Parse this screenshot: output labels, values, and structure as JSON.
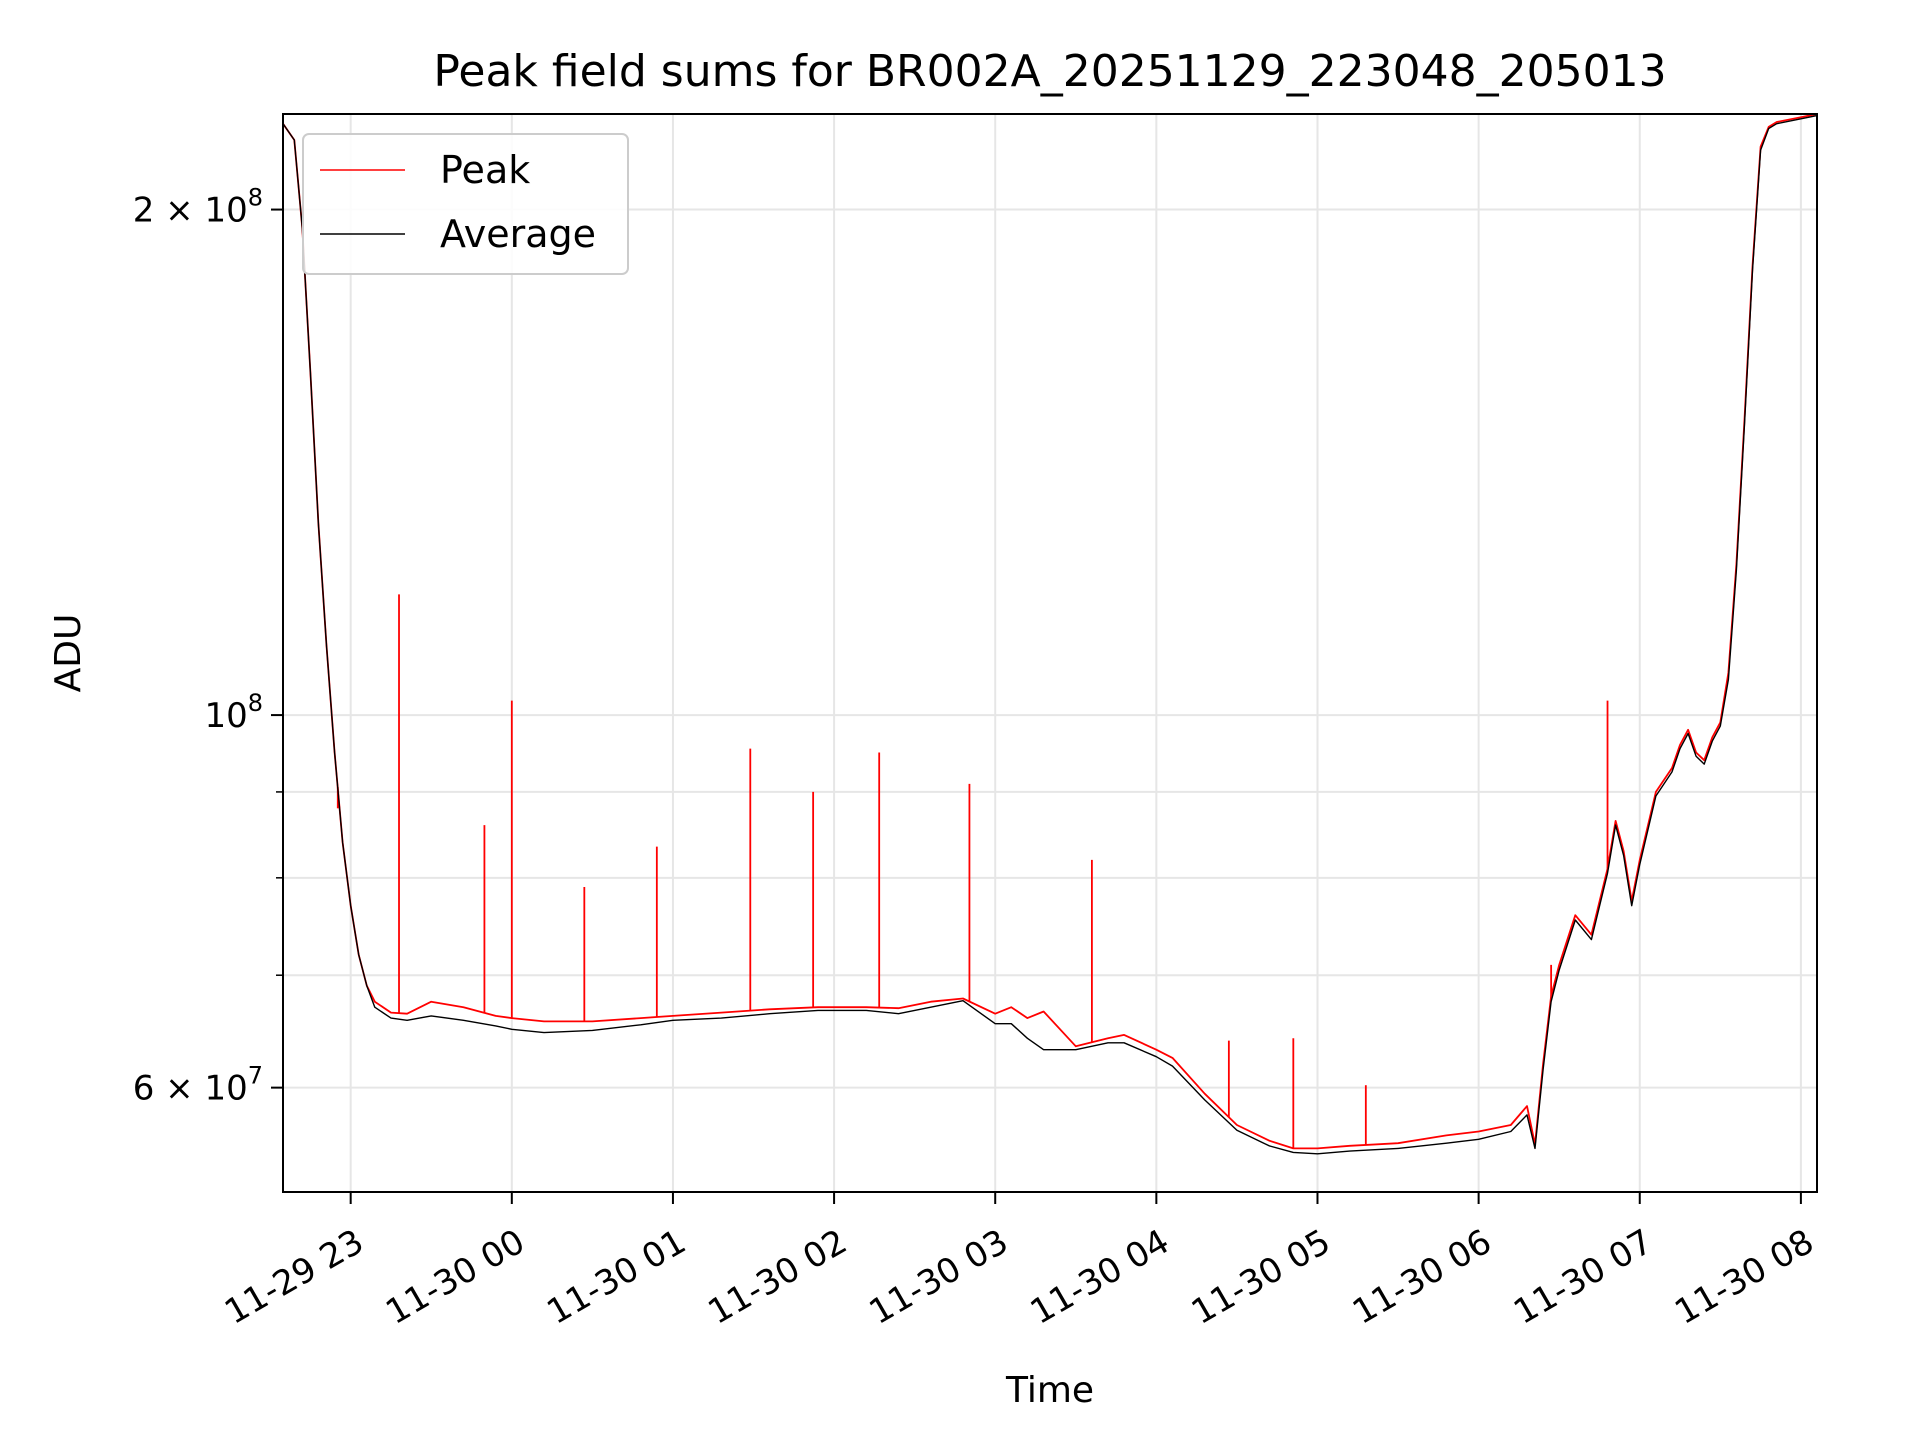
{
  "chart_data": {
    "type": "line",
    "title": "Peak field sums for BR002A_20251129_223048_205013",
    "xlabel": "Time",
    "ylabel": "ADU",
    "yscale": "log",
    "ylim": [
      52000000,
      228000000
    ],
    "xlim": [
      -0.42,
      9.1
    ],
    "grid": true,
    "legend_position": "top-left",
    "x_unit": "hours since 2025-11-29 23:00",
    "x_ticks": [
      {
        "value": 0,
        "label": "11-29 23"
      },
      {
        "value": 1,
        "label": "11-30 00"
      },
      {
        "value": 2,
        "label": "11-30 01"
      },
      {
        "value": 3,
        "label": "11-30 02"
      },
      {
        "value": 4,
        "label": "11-30 03"
      },
      {
        "value": 5,
        "label": "11-30 04"
      },
      {
        "value": 6,
        "label": "11-30 05"
      },
      {
        "value": 7,
        "label": "11-30 06"
      },
      {
        "value": 8,
        "label": "11-30 07"
      },
      {
        "value": 9,
        "label": "11-30 08"
      }
    ],
    "y_ticks_major": [
      {
        "value": 60000000,
        "mantissa": "6",
        "exponent": "7"
      },
      {
        "value": 100000000,
        "mantissa": "",
        "exponent": "8"
      },
      {
        "value": 200000000,
        "mantissa": "2",
        "exponent": "8"
      }
    ],
    "y_ticks_minor": [
      70000000,
      80000000,
      90000000
    ],
    "tick_base": "10",
    "tick_times": "×",
    "series": [
      {
        "name": "Peak",
        "color": "#ff0000",
        "x": [
          -0.42,
          -0.35,
          -0.3,
          -0.25,
          -0.2,
          -0.15,
          -0.1,
          -0.05,
          0.0,
          0.05,
          0.1,
          0.15,
          0.25,
          0.35,
          0.5,
          0.7,
          0.9,
          1.0,
          1.2,
          1.5,
          1.8,
          2.0,
          2.3,
          2.6,
          2.9,
          3.2,
          3.4,
          3.6,
          3.8,
          4.0,
          4.1,
          4.2,
          4.3,
          4.5,
          4.7,
          4.8,
          5.0,
          5.1,
          5.3,
          5.5,
          5.7,
          5.85,
          6.0,
          6.2,
          6.5,
          6.8,
          7.0,
          7.2,
          7.3,
          7.35,
          7.4,
          7.45,
          7.5,
          7.6,
          7.7,
          7.8,
          7.85,
          7.9,
          7.95,
          8.0,
          8.1,
          8.2,
          8.25,
          8.3,
          8.35,
          8.4,
          8.45,
          8.5,
          8.55,
          8.6,
          8.65,
          8.7,
          8.75,
          8.8,
          8.85,
          9.0,
          9.1
        ],
        "y": [
          225000000,
          220000000,
          195000000,
          160000000,
          130000000,
          110000000,
          95000000,
          84000000,
          77000000,
          72000000,
          69000000,
          67500000,
          66500000,
          66400000,
          67500000,
          67000000,
          66200000,
          66000000,
          65700000,
          65700000,
          66000000,
          66200000,
          66500000,
          66800000,
          67000000,
          67000000,
          66900000,
          67500000,
          67800000,
          66400000,
          67000000,
          66000000,
          66600000,
          63500000,
          64200000,
          64500000,
          63200000,
          62500000,
          59500000,
          57000000,
          55800000,
          55200000,
          55200000,
          55400000,
          55600000,
          56200000,
          56500000,
          57000000,
          58500000,
          55500000,
          62000000,
          68000000,
          71000000,
          76000000,
          74000000,
          81000000,
          86500000,
          83000000,
          77500000,
          82000000,
          90000000,
          93000000,
          96000000,
          98000000,
          95000000,
          94000000,
          97000000,
          99000000,
          106000000,
          123000000,
          150000000,
          185000000,
          218000000,
          224000000,
          225500000,
          227000000,
          228000000
        ],
        "spikes": [
          {
            "x": -0.08,
            "y": 88000000
          },
          {
            "x": 0.3,
            "y": 118000000
          },
          {
            "x": 0.83,
            "y": 86000000
          },
          {
            "x": 1.0,
            "y": 102000000
          },
          {
            "x": 1.45,
            "y": 79000000
          },
          {
            "x": 1.9,
            "y": 83500000
          },
          {
            "x": 2.48,
            "y": 95500000
          },
          {
            "x": 2.87,
            "y": 90000000
          },
          {
            "x": 3.28,
            "y": 95000000
          },
          {
            "x": 3.84,
            "y": 91000000
          },
          {
            "x": 4.6,
            "y": 82000000
          },
          {
            "x": 5.45,
            "y": 64000000
          },
          {
            "x": 5.85,
            "y": 64200000
          },
          {
            "x": 6.3,
            "y": 60200000
          },
          {
            "x": 7.45,
            "y": 71000000
          },
          {
            "x": 7.8,
            "y": 102000000
          }
        ]
      },
      {
        "name": "Average",
        "color": "#000000",
        "x": [
          -0.42,
          -0.35,
          -0.3,
          -0.25,
          -0.2,
          -0.15,
          -0.1,
          -0.05,
          0.0,
          0.05,
          0.1,
          0.15,
          0.25,
          0.35,
          0.5,
          0.7,
          0.9,
          1.0,
          1.2,
          1.5,
          1.8,
          2.0,
          2.3,
          2.6,
          2.9,
          3.2,
          3.4,
          3.6,
          3.8,
          4.0,
          4.1,
          4.2,
          4.3,
          4.5,
          4.7,
          4.8,
          5.0,
          5.1,
          5.3,
          5.5,
          5.7,
          5.85,
          6.0,
          6.2,
          6.5,
          6.8,
          7.0,
          7.2,
          7.3,
          7.35,
          7.4,
          7.45,
          7.5,
          7.6,
          7.7,
          7.8,
          7.85,
          7.9,
          7.95,
          8.0,
          8.1,
          8.2,
          8.25,
          8.3,
          8.35,
          8.4,
          8.45,
          8.5,
          8.55,
          8.6,
          8.65,
          8.7,
          8.75,
          8.8,
          8.85,
          9.0,
          9.1
        ],
        "y": [
          225000000,
          220000000,
          195000000,
          160000000,
          130000000,
          110000000,
          95000000,
          84000000,
          77000000,
          72000000,
          69000000,
          67000000,
          66000000,
          65800000,
          66200000,
          65800000,
          65300000,
          65000000,
          64700000,
          64900000,
          65400000,
          65800000,
          66000000,
          66400000,
          66700000,
          66700000,
          66400000,
          67000000,
          67600000,
          65500000,
          65500000,
          64200000,
          63200000,
          63200000,
          63800000,
          63800000,
          62600000,
          61800000,
          59000000,
          56600000,
          55400000,
          54900000,
          54800000,
          55000000,
          55200000,
          55600000,
          55900000,
          56500000,
          57800000,
          55200000,
          61500000,
          67500000,
          70500000,
          75500000,
          73500000,
          80500000,
          86000000,
          82500000,
          77000000,
          81500000,
          89500000,
          92500000,
          95500000,
          97500000,
          94500000,
          93500000,
          96500000,
          98500000,
          105000000,
          122000000,
          149000000,
          184000000,
          217000000,
          223500000,
          225000000,
          226500000,
          227500000
        ]
      }
    ]
  }
}
